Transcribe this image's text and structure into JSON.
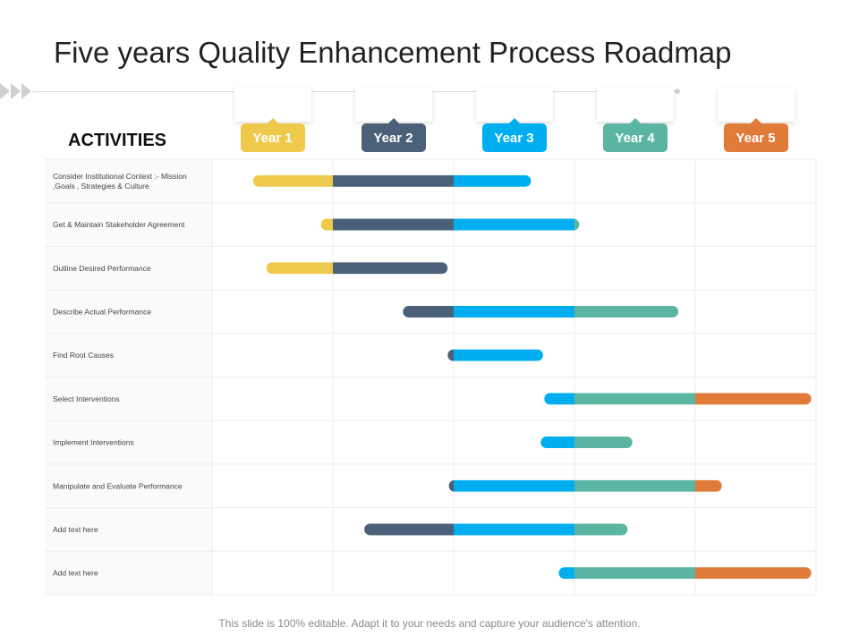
{
  "title": "Five years Quality Enhancement Process Roadmap",
  "activities_heading": "ACTIVITIES",
  "footer": "This slide is 100% editable. Adapt it to your needs and capture your audience's attention.",
  "chart_data": {
    "type": "bar",
    "orientation": "horizontal-gantt",
    "x_unit": "year",
    "xlim": [
      0,
      5
    ],
    "grid": true,
    "periods": [
      {
        "label": "Year 1",
        "color": "#EFC94C"
      },
      {
        "label": "Year 2",
        "color": "#4A6179"
      },
      {
        "label": "Year 3",
        "color": "#00AEEF"
      },
      {
        "label": "Year 4",
        "color": "#5BB5A2"
      },
      {
        "label": "Year 5",
        "color": "#E07B39"
      }
    ],
    "tasks": [
      {
        "label": "Consider Institutional Context :- Mission ,Goals , Strategies & Culture",
        "start": 0.34,
        "end": 2.64
      },
      {
        "label": "Get & Maintain Stakeholder Agreement",
        "start": 0.9,
        "end": 3.04
      },
      {
        "label": "Outline Desired Performance",
        "start": 0.45,
        "end": 1.95
      },
      {
        "label": "Describe Actual Performance",
        "start": 1.58,
        "end": 3.86
      },
      {
        "label": "Find Root Causes",
        "start": 1.95,
        "end": 2.74
      },
      {
        "label": "Select Interventions",
        "start": 2.75,
        "end": 4.96
      },
      {
        "label": "Implement Interventions",
        "start": 2.72,
        "end": 3.48
      },
      {
        "label": "Manipulate and Evaluate Performance",
        "start": 1.96,
        "end": 4.22
      },
      {
        "label": "Add text here",
        "start": 1.26,
        "end": 3.44
      },
      {
        "label": "Add text here",
        "start": 2.87,
        "end": 4.96
      }
    ]
  }
}
